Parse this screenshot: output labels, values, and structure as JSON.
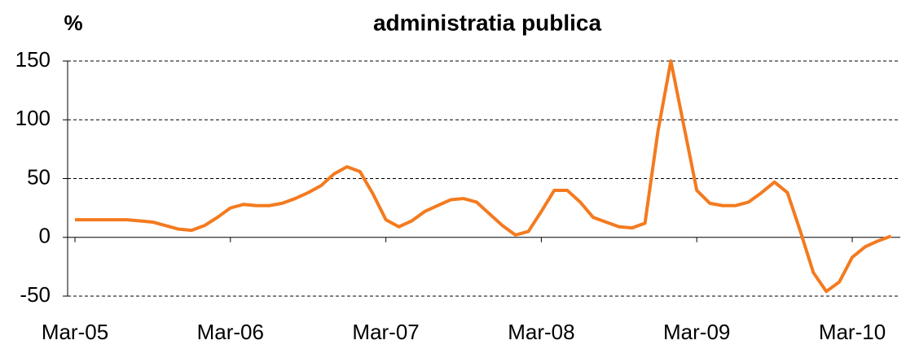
{
  "chart_data": {
    "type": "line",
    "title": "administratia publica",
    "y_label": "%",
    "categories": [
      "Mar-05",
      null,
      null,
      null,
      null,
      null,
      null,
      null,
      null,
      null,
      null,
      null,
      "Mar-06",
      null,
      null,
      null,
      null,
      null,
      null,
      null,
      null,
      null,
      null,
      null,
      "Mar-07",
      null,
      null,
      null,
      null,
      null,
      null,
      null,
      null,
      null,
      null,
      null,
      "Mar-08",
      null,
      null,
      null,
      null,
      null,
      null,
      null,
      null,
      null,
      null,
      null,
      "Mar-09",
      null,
      null,
      null,
      null,
      null,
      null,
      null,
      null,
      null,
      null,
      null,
      "Mar-10",
      null,
      null,
      null
    ],
    "series": [
      {
        "color": "#f47a1f",
        "values": [
          15,
          15,
          15,
          15,
          15,
          14,
          13,
          10,
          7,
          6,
          10,
          17,
          25,
          28,
          27,
          27,
          29,
          33,
          38,
          44,
          54,
          60,
          56,
          37,
          15,
          9,
          14,
          22,
          27,
          32,
          33,
          30,
          20,
          10,
          2,
          5,
          22,
          40,
          40,
          30,
          17,
          13,
          9,
          8,
          12,
          90,
          150,
          95,
          40,
          29,
          27,
          27,
          30,
          38,
          47,
          38,
          5,
          -30,
          -46,
          -38,
          -17,
          -8,
          -3,
          1
        ]
      }
    ],
    "ylim": [
      -50,
      150
    ],
    "yticks": [
      -50,
      0,
      50,
      100,
      150
    ],
    "grid": true
  }
}
